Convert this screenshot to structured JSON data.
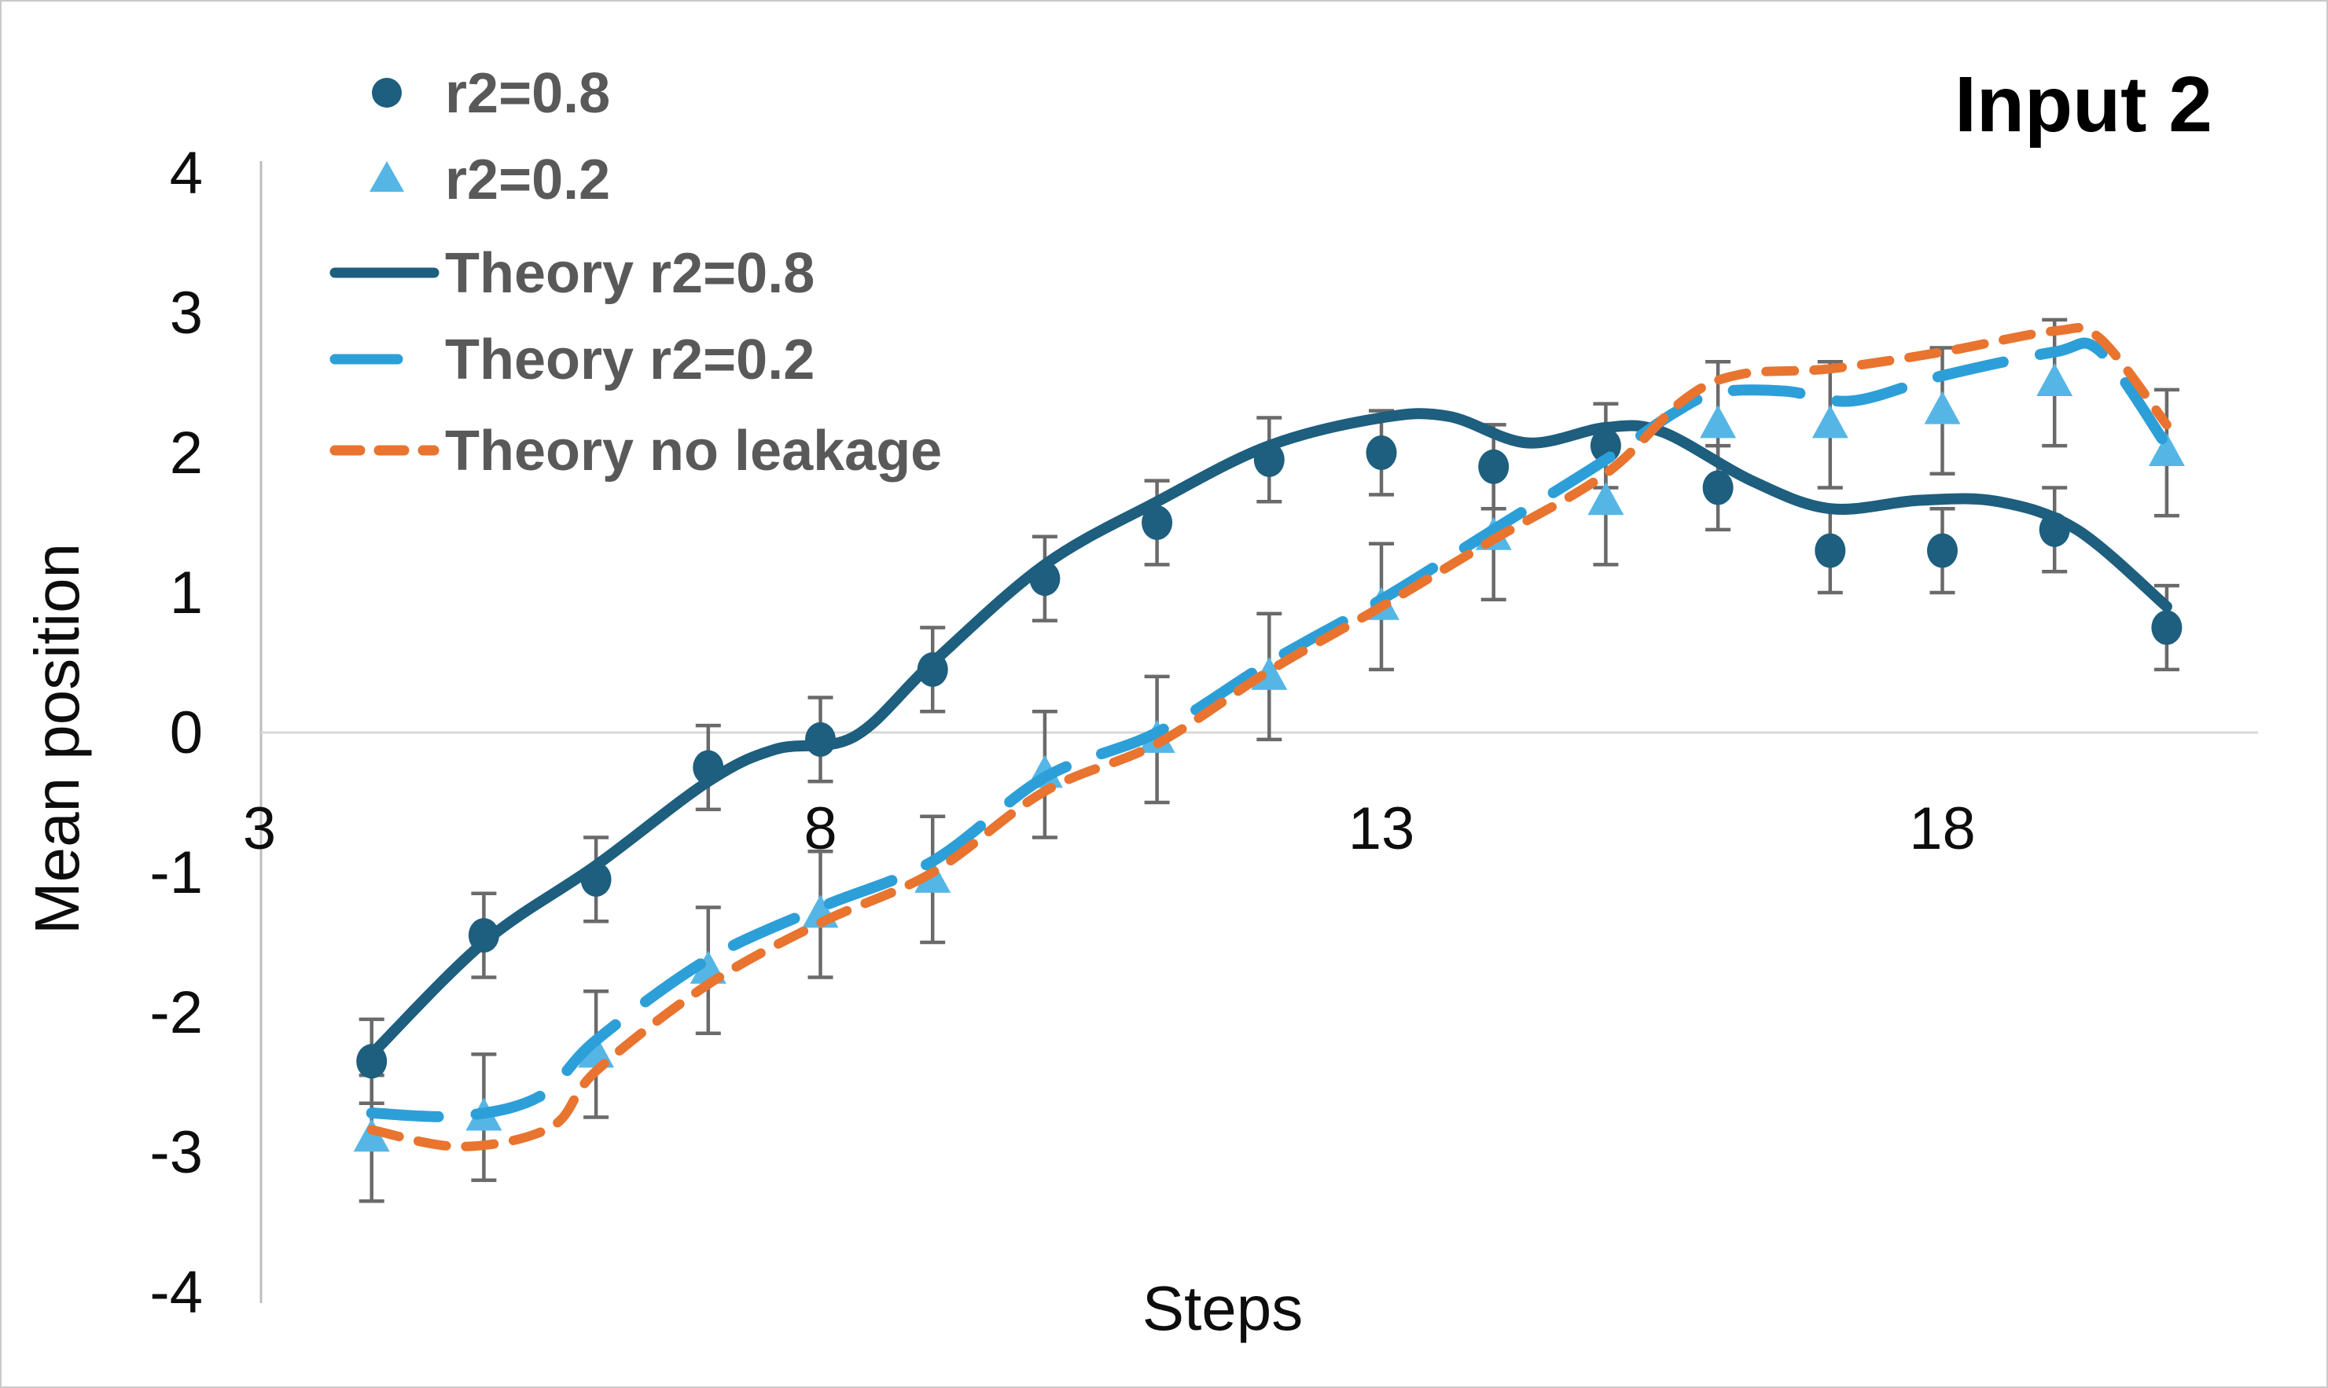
{
  "title": "Input 2",
  "axes": {
    "x": {
      "label": "Steps",
      "ticks": [
        "3",
        "8",
        "13",
        "18"
      ]
    },
    "y": {
      "label": "Mean position",
      "ticks": [
        "4",
        "3",
        "2",
        "1",
        "0",
        "-1",
        "-2",
        "-3",
        "-4"
      ]
    }
  },
  "legend": {
    "items": [
      {
        "label": "r2=0.8",
        "swatch": "circle-marker",
        "color_key": "dark_blue"
      },
      {
        "label": "r2=0.2",
        "swatch": "triangle-marker",
        "color_key": "light_blue_marker"
      },
      {
        "label": "Theory r2=0.8",
        "swatch": "solid-line",
        "color_key": "dark_blue"
      },
      {
        "label": "Theory r2=0.2",
        "swatch": "long-dash-line",
        "color_key": "light_blue_line"
      },
      {
        "label": "Theory no leakage",
        "swatch": "short-dash-line",
        "color_key": "orange"
      }
    ]
  },
  "colors": {
    "dark_blue": "#1E5E7E",
    "light_blue_line": "#2D9FD8",
    "light_blue_marker": "#55B6E6",
    "orange": "#E8742F",
    "legend_text": "#595959",
    "axis_line": "#BDBDBD",
    "gridline": "#D8D8D8",
    "error_bar": "#6A6A6A",
    "tick_text": "#0d0d0d",
    "title_text": "#000000"
  },
  "chart_data": {
    "type": "line",
    "title": "Input 2",
    "xlabel": "Steps",
    "ylabel": "Mean position",
    "x_tick_values": [
      3,
      8,
      13,
      18
    ],
    "y_tick_values": [
      4,
      3,
      2,
      1,
      0,
      -1,
      -2,
      -3,
      -4
    ],
    "xlim": [
      3,
      21
    ],
    "ylim": [
      -4,
      4
    ],
    "grid": "zero-line-only",
    "legend_position": "top-left",
    "series": [
      {
        "name": "r2=0.8",
        "kind": "scatter",
        "marker": "circle",
        "color_key": "dark_blue",
        "error": 0.3,
        "x": [
          4,
          5,
          6,
          7,
          8,
          9,
          10,
          11,
          12,
          13,
          14,
          15,
          16,
          17,
          18,
          19,
          20
        ],
        "values": [
          -2.35,
          -1.45,
          -1.05,
          -0.25,
          -0.05,
          0.45,
          1.1,
          1.5,
          1.95,
          2.0,
          1.9,
          2.05,
          1.75,
          1.3,
          1.3,
          1.45,
          0.75
        ]
      },
      {
        "name": "r2=0.2",
        "kind": "scatter",
        "marker": "triangle",
        "color_key": "light_blue_marker",
        "error": 0.45,
        "x": [
          4,
          5,
          6,
          7,
          8,
          9,
          10,
          11,
          12,
          13,
          14,
          15,
          16,
          17,
          18,
          19,
          20
        ],
        "values": [
          -2.9,
          -2.75,
          -2.3,
          -1.7,
          -1.3,
          -1.05,
          -0.3,
          -0.05,
          0.4,
          0.9,
          1.4,
          1.65,
          2.2,
          2.2,
          2.3,
          2.5,
          2.0
        ]
      },
      {
        "name": "Theory r2=0.8",
        "kind": "line",
        "style": "solid",
        "color_key": "dark_blue",
        "points": [
          [
            4,
            -2.3
          ],
          [
            5,
            -1.5
          ],
          [
            6,
            -0.95
          ],
          [
            7,
            -0.35
          ],
          [
            7.6,
            -0.12
          ],
          [
            8.3,
            -0.03
          ],
          [
            9,
            0.5
          ],
          [
            10,
            1.2
          ],
          [
            11,
            1.65
          ],
          [
            12,
            2.05
          ],
          [
            13,
            2.25
          ],
          [
            13.6,
            2.26
          ],
          [
            14.3,
            2.07
          ],
          [
            15,
            2.18
          ],
          [
            15.5,
            2.15
          ],
          [
            16.3,
            1.8
          ],
          [
            17,
            1.6
          ],
          [
            17.8,
            1.66
          ],
          [
            18.5,
            1.65
          ],
          [
            19.2,
            1.45
          ],
          [
            20,
            0.9
          ]
        ]
      },
      {
        "name": "Theory r2=0.2",
        "kind": "line",
        "style": "long-dash",
        "color_key": "light_blue_line",
        "points": [
          [
            4,
            -2.72
          ],
          [
            4.8,
            -2.74
          ],
          [
            5.5,
            -2.6
          ],
          [
            6,
            -2.2
          ],
          [
            7,
            -1.62
          ],
          [
            8,
            -1.25
          ],
          [
            9,
            -0.92
          ],
          [
            10,
            -0.32
          ],
          [
            11,
            0.0
          ],
          [
            12,
            0.5
          ],
          [
            13,
            0.95
          ],
          [
            14,
            1.45
          ],
          [
            15,
            1.95
          ],
          [
            15.6,
            2.28
          ],
          [
            16,
            2.43
          ],
          [
            16.6,
            2.44
          ],
          [
            17.2,
            2.37
          ],
          [
            18,
            2.55
          ],
          [
            19,
            2.72
          ],
          [
            19.4,
            2.73
          ],
          [
            20,
            2.05
          ]
        ]
      },
      {
        "name": "Theory no leakage",
        "kind": "line",
        "style": "short-dash",
        "color_key": "orange",
        "points": [
          [
            4,
            -2.84
          ],
          [
            4.8,
            -2.96
          ],
          [
            5.6,
            -2.82
          ],
          [
            6,
            -2.42
          ],
          [
            7,
            -1.8
          ],
          [
            8,
            -1.36
          ],
          [
            9,
            -1.0
          ],
          [
            10,
            -0.42
          ],
          [
            11,
            -0.08
          ],
          [
            12,
            0.44
          ],
          [
            13,
            0.9
          ],
          [
            14,
            1.38
          ],
          [
            15,
            1.85
          ],
          [
            15.7,
            2.38
          ],
          [
            16.2,
            2.56
          ],
          [
            17,
            2.6
          ],
          [
            18,
            2.72
          ],
          [
            19,
            2.87
          ],
          [
            19.4,
            2.82
          ],
          [
            20,
            2.2
          ]
        ]
      }
    ]
  }
}
